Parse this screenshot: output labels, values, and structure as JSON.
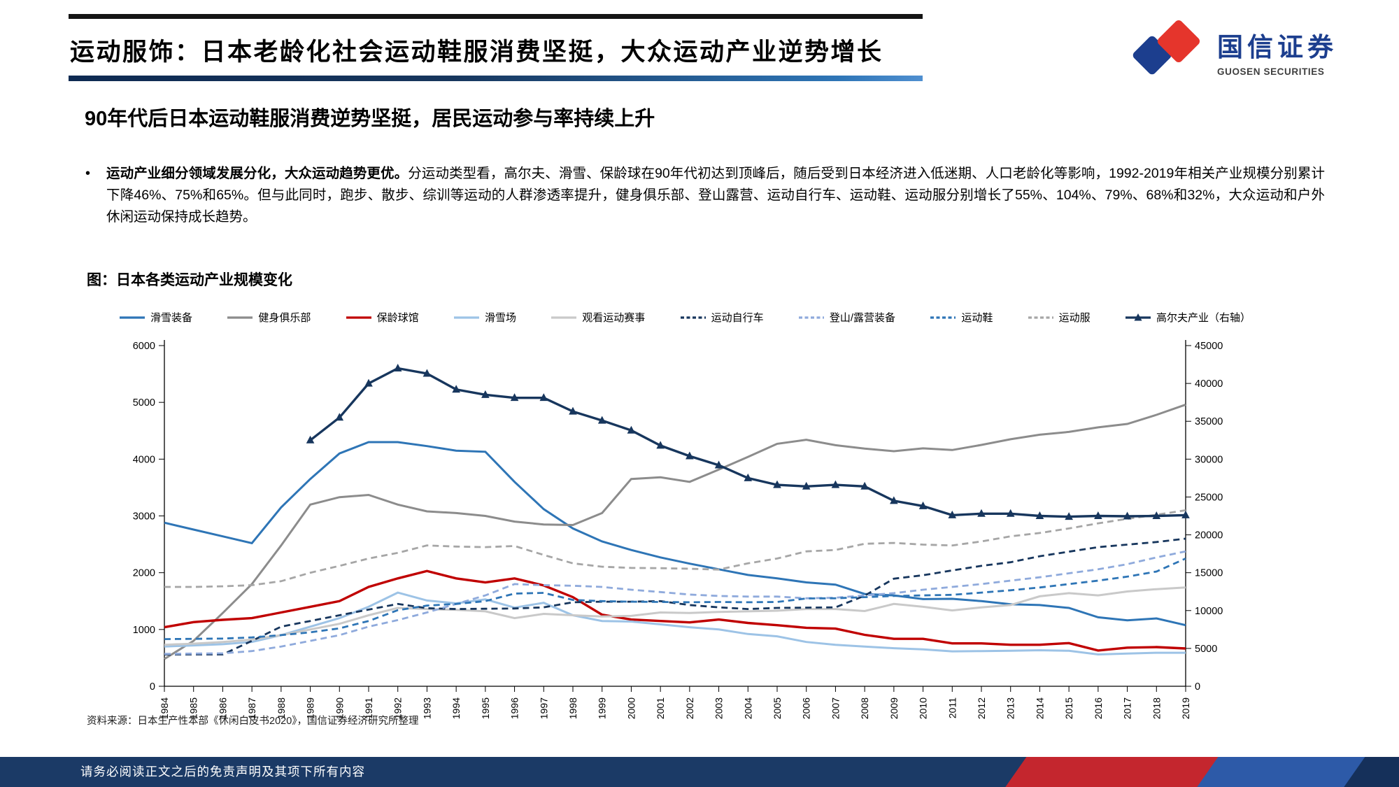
{
  "header": {
    "title": "运动服饰：日本老龄化社会运动鞋服消费坚挺，大众运动产业逆势增长",
    "logo": {
      "name": "国信证券",
      "subname": "GUOSEN SECURITIES"
    }
  },
  "subtitle": "90年代后日本运动鞋服消费逆势坚挺，居民运动参与率持续上升",
  "bullet": {
    "marker": "•",
    "lead": "运动产业细分领域发展分化，大众运动趋势更优。",
    "rest": "分运动类型看，高尔夫、滑雪、保龄球在90年代初达到顶峰后，随后受到日本经济进入低迷期、人口老龄化等影响，1992-2019年相关产业规模分别累计下降46%、75%和65%。但与此同时，跑步、散步、综训等运动的人群渗透率提升，健身俱乐部、登山露营、运动自行车、运动鞋、运动服分别增长了55%、104%、79%、68%和32%，大众运动和户外休闲运动保持成长趋势。"
  },
  "chart": {
    "title": "图：日本各类运动产业规模变化"
  },
  "chart_data": {
    "type": "line",
    "x": [
      1984,
      1985,
      1986,
      1987,
      1988,
      1989,
      1990,
      1991,
      1992,
      1993,
      1994,
      1995,
      1996,
      1997,
      1998,
      1999,
      2000,
      2001,
      2002,
      2003,
      2004,
      2005,
      2006,
      2007,
      2008,
      2009,
      2010,
      2011,
      2012,
      2013,
      2014,
      2015,
      2016,
      2017,
      2018,
      2019
    ],
    "left_axis": {
      "min": 0,
      "max": 6000
    },
    "right_axis": {
      "min": 0,
      "max": 45000
    },
    "left_ticks": [
      0,
      1000,
      2000,
      3000,
      4000,
      5000,
      6000
    ],
    "right_ticks": [
      0,
      5000,
      10000,
      15000,
      20000,
      25000,
      30000,
      35000,
      40000,
      45000
    ],
    "grid": false,
    "legend_position": "top",
    "series": [
      {
        "name": "滑雪装备",
        "color": "#2e75b6",
        "dash": false,
        "axis": "left",
        "width": 3,
        "values": [
          2880,
          2760,
          2640,
          2520,
          3150,
          3650,
          4100,
          4300,
          4300,
          4230,
          4150,
          4130,
          3600,
          3120,
          2780,
          2550,
          2400,
          2270,
          2160,
          2060,
          1960,
          1900,
          1830,
          1790,
          1625,
          1600,
          1535,
          1540,
          1500,
          1445,
          1430,
          1380,
          1215,
          1160,
          1195,
          1075
        ]
      },
      {
        "name": "健身俱乐部",
        "color": "#8c8c8c",
        "dash": false,
        "axis": "left",
        "width": 3,
        "values": [
          480,
          800,
          1290,
          1800,
          2480,
          3200,
          3330,
          3370,
          3200,
          3080,
          3050,
          3000,
          2900,
          2850,
          2840,
          3050,
          3650,
          3680,
          3600,
          3815,
          4040,
          4270,
          4340,
          4245,
          4185,
          4140,
          4190,
          4160,
          4250,
          4350,
          4430,
          4480,
          4560,
          4620,
          4780,
          4960
        ]
      },
      {
        "name": "保龄球馆",
        "color": "#c00000",
        "dash": false,
        "axis": "left",
        "width": 3.4,
        "values": [
          1040,
          1130,
          1170,
          1200,
          1300,
          1400,
          1500,
          1750,
          1900,
          2030,
          1900,
          1830,
          1900,
          1775,
          1570,
          1260,
          1175,
          1150,
          1125,
          1175,
          1115,
          1075,
          1030,
          1015,
          905,
          835,
          835,
          755,
          755,
          730,
          730,
          760,
          630,
          680,
          690,
          665
        ]
      },
      {
        "name": "滑雪场",
        "color": "#9dc3e6",
        "dash": false,
        "axis": "left",
        "width": 3,
        "values": [
          700,
          720,
          740,
          780,
          900,
          1050,
          1200,
          1400,
          1650,
          1510,
          1460,
          1530,
          1385,
          1470,
          1250,
          1150,
          1140,
          1090,
          1040,
          1000,
          920,
          880,
          780,
          730,
          700,
          670,
          650,
          615,
          620,
          625,
          635,
          625,
          560,
          575,
          590,
          590
        ]
      },
      {
        "name": "观看运动赛事",
        "color": "#c9c9c9",
        "dash": false,
        "axis": "left",
        "width": 3,
        "values": [
          730,
          750,
          780,
          820,
          900,
          1000,
          1100,
          1250,
          1380,
          1360,
          1345,
          1320,
          1200,
          1275,
          1250,
          1230,
          1240,
          1300,
          1290,
          1310,
          1320,
          1330,
          1360,
          1360,
          1325,
          1450,
          1400,
          1335,
          1390,
          1430,
          1585,
          1640,
          1600,
          1670,
          1710,
          1740
        ]
      },
      {
        "name": "运动自行车",
        "color": "#17365d",
        "dash": true,
        "axis": "left",
        "width": 2.8,
        "values": [
          560,
          560,
          560,
          800,
          1050,
          1150,
          1250,
          1350,
          1450,
          1375,
          1360,
          1365,
          1370,
          1390,
          1480,
          1490,
          1490,
          1500,
          1430,
          1390,
          1360,
          1380,
          1385,
          1390,
          1595,
          1895,
          1955,
          2040,
          2120,
          2185,
          2290,
          2370,
          2450,
          2495,
          2540,
          2600
        ]
      },
      {
        "name": "登山/露营装备",
        "color": "#8faadc",
        "dash": true,
        "axis": "left",
        "width": 2.8,
        "values": [
          570,
          575,
          580,
          620,
          700,
          800,
          900,
          1050,
          1165,
          1300,
          1450,
          1600,
          1800,
          1780,
          1770,
          1750,
          1700,
          1660,
          1615,
          1590,
          1580,
          1580,
          1550,
          1560,
          1600,
          1640,
          1700,
          1750,
          1800,
          1860,
          1920,
          1990,
          2060,
          2150,
          2270,
          2375
        ]
      },
      {
        "name": "运动鞋",
        "color": "#2e75b6",
        "dash": true,
        "axis": "left",
        "width": 2.8,
        "values": [
          830,
          835,
          840,
          860,
          900,
          950,
          1020,
          1150,
          1340,
          1420,
          1450,
          1500,
          1633,
          1645,
          1520,
          1500,
          1490,
          1485,
          1480,
          1485,
          1480,
          1485,
          1546,
          1550,
          1570,
          1590,
          1600,
          1610,
          1650,
          1690,
          1740,
          1800,
          1860,
          1930,
          2020,
          2250
        ]
      },
      {
        "name": "运动服",
        "color": "#a6a6a6",
        "dash": true,
        "axis": "left",
        "width": 2.8,
        "values": [
          1750,
          1750,
          1760,
          1780,
          1850,
          2000,
          2120,
          2250,
          2350,
          2480,
          2460,
          2450,
          2470,
          2313,
          2165,
          2105,
          2085,
          2080,
          2070,
          2055,
          2165,
          2250,
          2375,
          2400,
          2510,
          2525,
          2495,
          2480,
          2550,
          2640,
          2700,
          2780,
          2870,
          2950,
          3020,
          3100
        ]
      },
      {
        "name": "高尔夫产业（右轴）",
        "color": "#17365d",
        "dash": false,
        "marker": "triangle",
        "axis": "right",
        "width": 3.4,
        "values": [
          null,
          null,
          null,
          null,
          null,
          32500,
          35500,
          40000,
          42000,
          41300,
          39200,
          38500,
          38100,
          38100,
          36300,
          35100,
          33800,
          31800,
          30400,
          29200,
          27500,
          26600,
          26400,
          26600,
          26400,
          24500,
          23800,
          22600,
          22800,
          22800,
          22500,
          22400,
          22500,
          22450,
          22500,
          22600
        ]
      }
    ]
  },
  "source": "资料来源：日本生产性本部《休闲白皮书2020》，国信证券经济研究所整理",
  "footer": "请务必阅读正文之后的免责声明及其项下所有内容",
  "style": {
    "accent_navy": "#17365d",
    "logo_blue": "#1c3e8e",
    "logo_red": "#e5352c",
    "footer_bg": "#1b3a66",
    "ribbon_red": "#c4262e",
    "ribbon_blue": "#2d5aa8"
  }
}
